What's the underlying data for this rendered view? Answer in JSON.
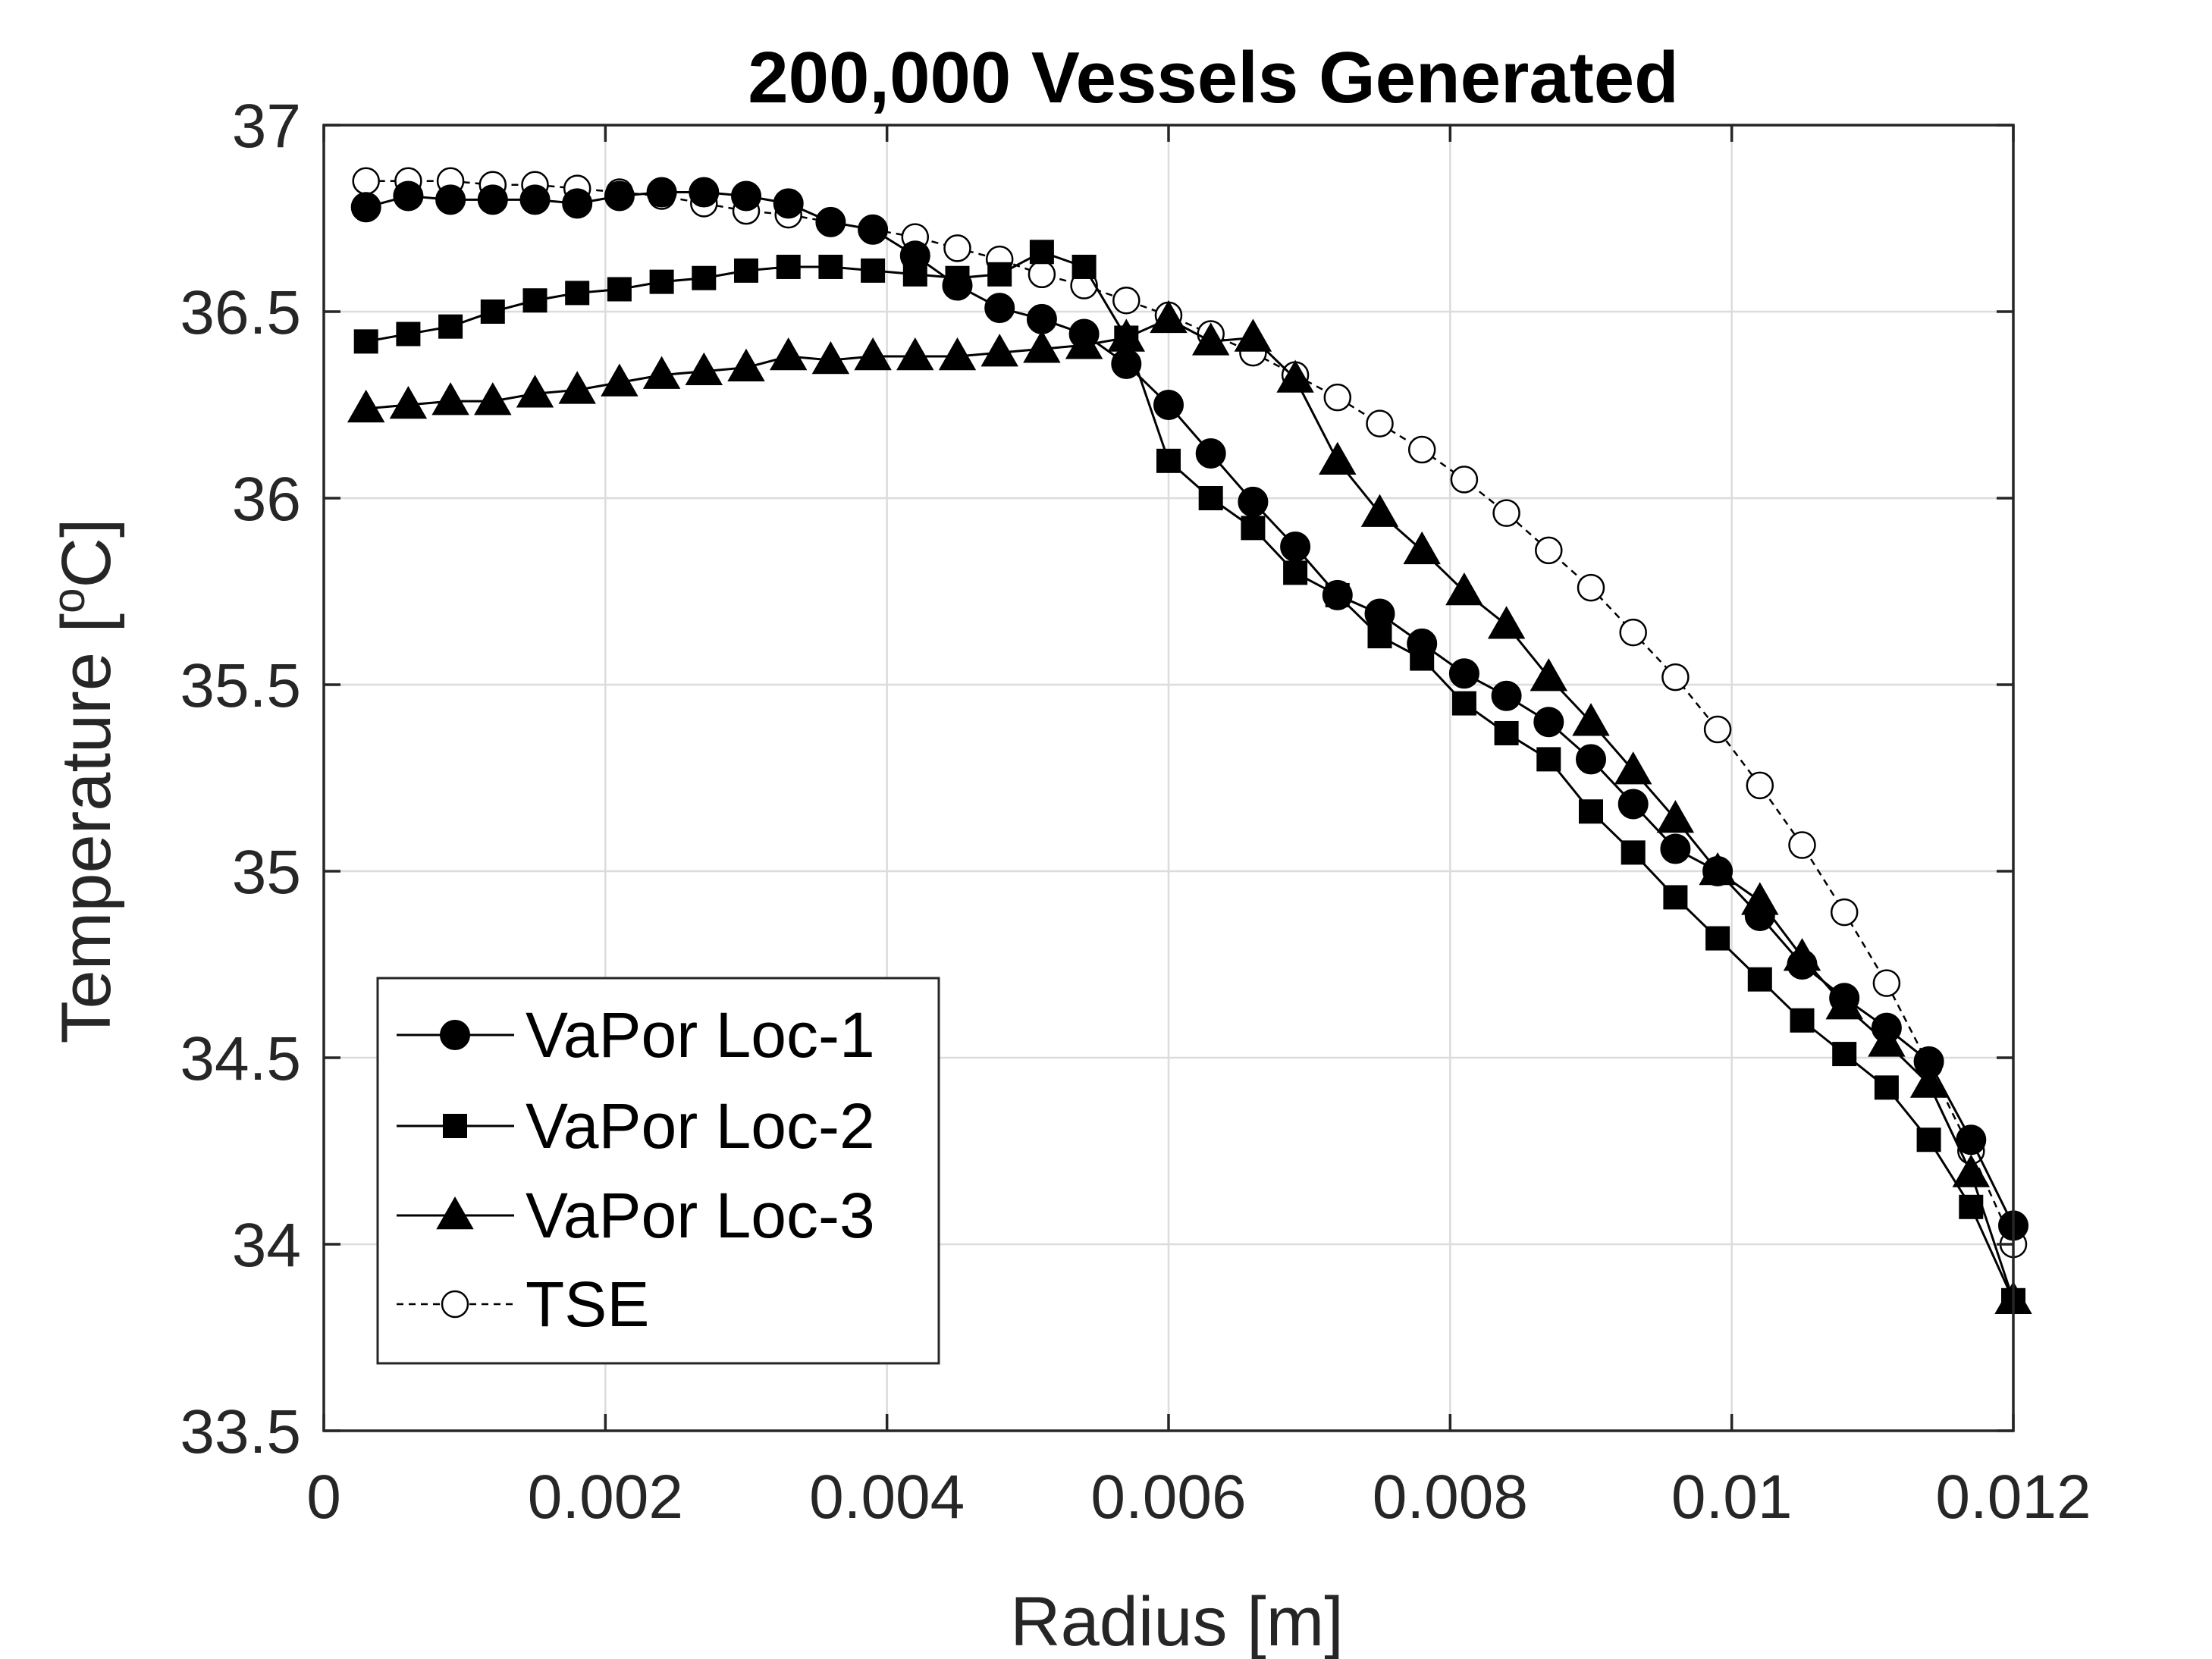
{
  "chart_data": {
    "type": "line",
    "title": "200,000 Vessels Generated",
    "xlabel": "Radius [m]",
    "ylabel_main": "Temperature [",
    "ylabel_sup": "o",
    "ylabel_end": "C]",
    "xlim": [
      0,
      0.012
    ],
    "ylim": [
      33.5,
      37
    ],
    "xticks": [
      0,
      0.002,
      0.004,
      0.006,
      0.008,
      0.01,
      0.012
    ],
    "xtick_labels": [
      "0",
      "0.002",
      "0.004",
      "0.006",
      "0.008",
      "0.01",
      "0.012"
    ],
    "yticks": [
      33.5,
      34,
      34.5,
      35,
      35.5,
      36,
      36.5,
      37
    ],
    "ytick_labels": [
      "33.5",
      "34",
      "34.5",
      "35",
      "35.5",
      "36",
      "36.5",
      "37"
    ],
    "grid": true,
    "legend_position": "bottom-left",
    "colors": {
      "line": "#000000",
      "grid": "#dcdcdc",
      "axis": "#262626"
    },
    "x": [
      0.0003,
      0.0006,
      0.0009,
      0.0012,
      0.0015,
      0.0018,
      0.0021,
      0.0024,
      0.0027,
      0.003,
      0.0033,
      0.0036,
      0.0039,
      0.0042,
      0.0045,
      0.0048,
      0.0051,
      0.0054,
      0.0057,
      0.006,
      0.0063,
      0.0066,
      0.0069,
      0.0072,
      0.0075,
      0.0078,
      0.0081,
      0.0084,
      0.0087,
      0.009,
      0.0093,
      0.0096,
      0.0099,
      0.0102,
      0.0105,
      0.0108,
      0.0111,
      0.0114,
      0.0117,
      0.012
    ],
    "series": [
      {
        "name": "VaPor Loc-1",
        "marker": "circle-filled",
        "line": "solid",
        "values": [
          36.78,
          36.81,
          36.8,
          36.8,
          36.8,
          36.79,
          36.81,
          36.82,
          36.82,
          36.81,
          36.79,
          36.74,
          36.72,
          36.65,
          36.57,
          36.51,
          36.48,
          36.44,
          36.36,
          36.25,
          36.12,
          35.99,
          35.87,
          35.74,
          35.69,
          35.61,
          35.53,
          35.47,
          35.4,
          35.3,
          35.18,
          35.06,
          35.0,
          34.88,
          34.75,
          34.66,
          34.58,
          34.49,
          34.28,
          34.05
        ]
      },
      {
        "name": "VaPor Loc-2",
        "marker": "square-filled",
        "line": "solid",
        "values": [
          36.42,
          36.44,
          36.46,
          36.5,
          36.53,
          36.55,
          36.56,
          36.58,
          36.59,
          36.61,
          36.62,
          36.62,
          36.61,
          36.6,
          36.59,
          36.6,
          36.66,
          36.62,
          36.43,
          36.1,
          36.0,
          35.92,
          35.8,
          35.74,
          35.63,
          35.57,
          35.45,
          35.37,
          35.3,
          35.16,
          35.05,
          34.93,
          34.82,
          34.71,
          34.6,
          34.51,
          34.42,
          34.28,
          34.1,
          33.85
        ]
      },
      {
        "name": "VaPor Loc-3",
        "marker": "triangle-filled",
        "line": "solid",
        "values": [
          36.24,
          36.25,
          36.26,
          36.26,
          36.28,
          36.29,
          36.31,
          36.33,
          36.34,
          36.35,
          36.38,
          36.37,
          36.38,
          36.38,
          36.38,
          36.39,
          36.4,
          36.41,
          36.43,
          36.48,
          36.42,
          36.43,
          36.32,
          36.1,
          35.96,
          35.86,
          35.75,
          35.66,
          35.52,
          35.4,
          35.27,
          35.14,
          35.0,
          34.92,
          34.77,
          34.64,
          34.54,
          34.43,
          34.19,
          33.85
        ]
      },
      {
        "name": "TSE",
        "marker": "circle-open",
        "line": "dashed",
        "values": [
          36.85,
          36.85,
          36.85,
          36.84,
          36.84,
          36.83,
          36.82,
          36.81,
          36.79,
          36.77,
          36.76,
          36.74,
          36.72,
          36.7,
          36.67,
          36.64,
          36.6,
          36.57,
          36.53,
          36.49,
          36.44,
          36.39,
          36.33,
          36.27,
          36.2,
          36.13,
          36.05,
          35.96,
          35.86,
          35.76,
          35.64,
          35.52,
          35.38,
          35.23,
          35.07,
          34.89,
          34.7,
          34.48,
          34.25,
          34.0
        ]
      }
    ]
  }
}
